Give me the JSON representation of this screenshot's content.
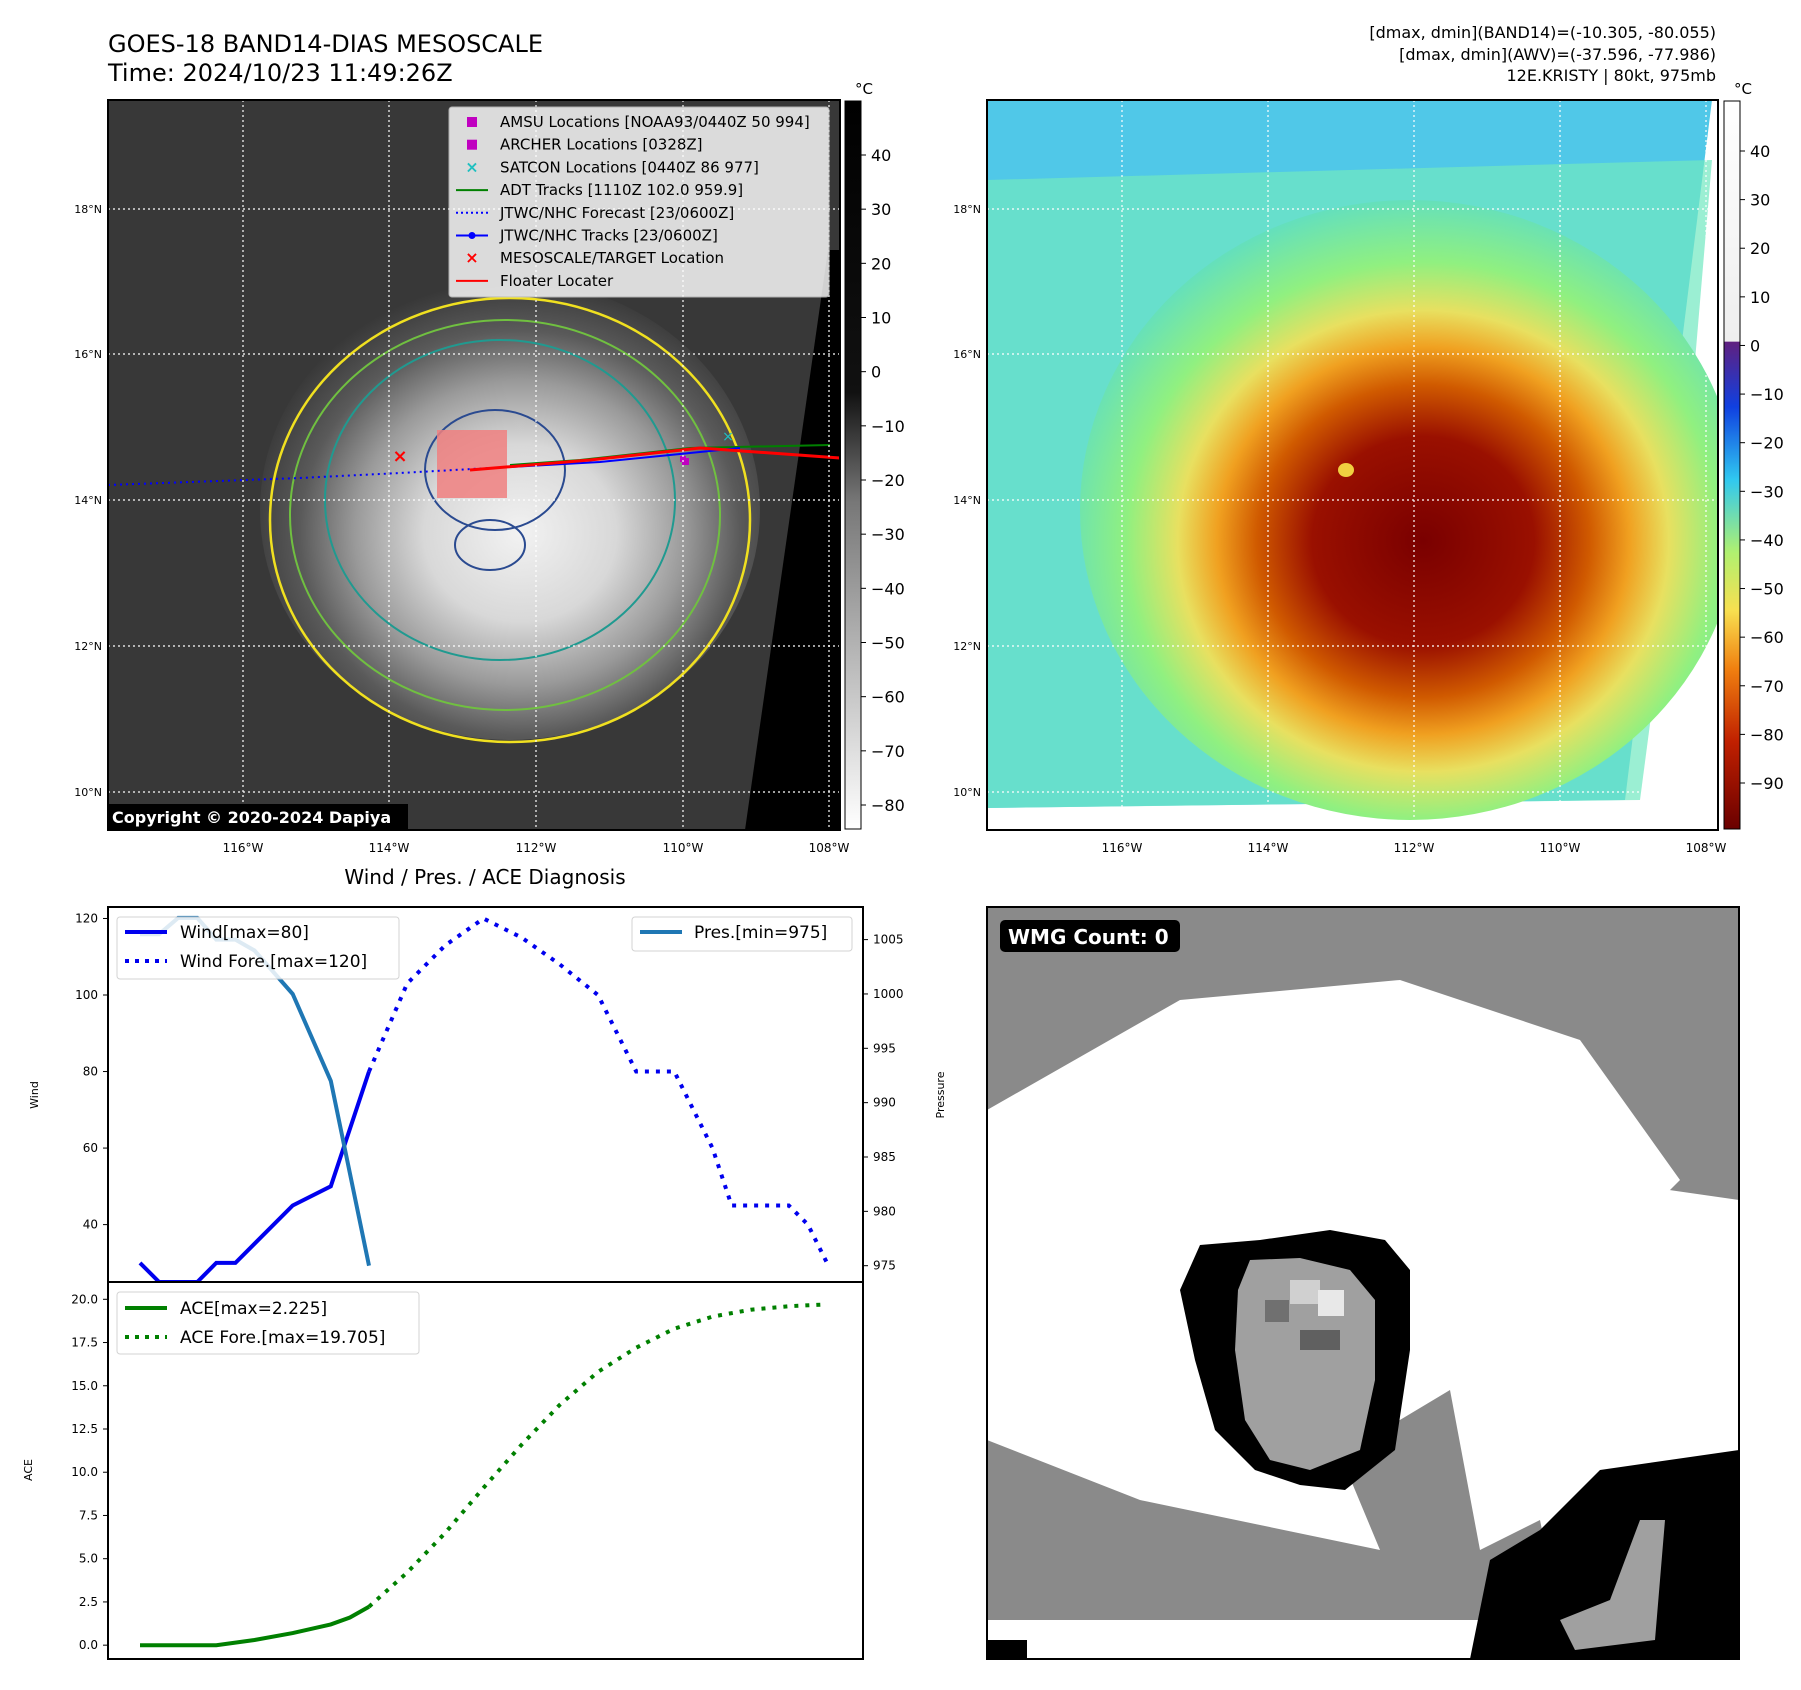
{
  "header": {
    "title_line1": "GOES-18 BAND14-DIAS MESOSCALE",
    "title_line2": "Time: 2024/10/23 11:49:26Z",
    "info_line1": "[dmax, dmin](BAND14)=(-10.305, -80.055)",
    "info_line2": "[dmax, dmin](AWV)=(-37.596, -77.986)",
    "info_line3": "12E.KRISTY | 80kt, 975mb"
  },
  "map": {
    "lat_labels": [
      "18°N",
      "16°N",
      "14°N",
      "12°N",
      "10°N"
    ],
    "lon_labels": [
      "116°W",
      "114°W",
      "112°W",
      "110°W",
      "108°W"
    ],
    "copyright": "Copyright © 2020-2024 Dapiya",
    "legend": [
      {
        "label": "AMSU Locations [NOAA93/0440Z 50 994]",
        "symbol": "square",
        "color": "#c000c0"
      },
      {
        "label": "ARCHER Locations [0328Z]",
        "symbol": "square",
        "color": "#c000c0"
      },
      {
        "label": "SATCON Locations [0440Z 86 977]",
        "symbol": "x",
        "color": "#20c0c0"
      },
      {
        "label": "ADT Tracks [1110Z 102.0 959.9]",
        "symbol": "line",
        "color": "#008000"
      },
      {
        "label": "JTWC/NHC Forecast [23/0600Z]",
        "symbol": "dotted",
        "color": "#0000ff"
      },
      {
        "label": "JTWC/NHC Tracks [23/0600Z]",
        "symbol": "line-dot",
        "color": "#0000ff"
      },
      {
        "label": "MESOSCALE/TARGET Location",
        "symbol": "x",
        "color": "#ff0000"
      },
      {
        "label": "Floater Locater",
        "symbol": "line",
        "color": "#ff0000"
      }
    ]
  },
  "colorbar_ir": {
    "unit": "°C",
    "ticks": [
      "40",
      "30",
      "20",
      "10",
      "0",
      "−10",
      "−20",
      "−30",
      "−40",
      "−50",
      "−60",
      "−70",
      "−80"
    ]
  },
  "colorbar_awv": {
    "unit": "°C",
    "ticks": [
      "40",
      "30",
      "20",
      "10",
      "0",
      "−10",
      "−20",
      "−30",
      "−40",
      "−50",
      "−60",
      "−70",
      "−80",
      "−90"
    ]
  },
  "diag_title": "Wind / Pres. / ACE Diagnosis",
  "wmg_label": "WMG Count: 0",
  "chart_data": [
    {
      "type": "line",
      "title": "Wind / Pres. / ACE Diagnosis",
      "ylabel": "Wind",
      "y2label": "Pressure",
      "ylim": [
        25,
        123
      ],
      "y2lim": [
        973.5,
        1008
      ],
      "yticks": [
        "40",
        "60",
        "80",
        "100",
        "120"
      ],
      "y2ticks": [
        "975",
        "980",
        "985",
        "990",
        "995",
        "1000",
        "1005"
      ],
      "series": [
        {
          "name": "Wind[max=80]",
          "axis": "left",
          "style": "solid",
          "color": "#0000ee",
          "x": [
            0,
            1,
            2,
            3,
            4,
            5,
            8,
            10,
            12
          ],
          "values": [
            30,
            25,
            25,
            25,
            30,
            30,
            45,
            50,
            80
          ]
        },
        {
          "name": "Wind Fore.[max=120]",
          "axis": "left",
          "style": "dotted",
          "color": "#0000ee",
          "x": [
            12,
            14,
            16,
            18,
            20,
            22,
            24,
            26,
            27,
            28,
            30,
            31,
            32,
            34,
            35,
            36
          ],
          "values": [
            80,
            103,
            113,
            120,
            115,
            108,
            100,
            80,
            80,
            80,
            60,
            45,
            45,
            45,
            40,
            30
          ]
        },
        {
          "name": "Pres.[min=975]",
          "axis": "right",
          "style": "solid",
          "color": "#1f77b4",
          "x": [
            0,
            1,
            2,
            3,
            4,
            5,
            6,
            8,
            10,
            12
          ],
          "values": [
            1005.5,
            1005.5,
            1007,
            1007,
            1005,
            1005,
            1004,
            1000,
            992,
            975
          ]
        }
      ]
    },
    {
      "type": "line",
      "ylabel": "ACE",
      "ylim": [
        -0.8,
        21
      ],
      "yticks": [
        "0.0",
        "2.5",
        "5.0",
        "7.5",
        "10.0",
        "12.5",
        "15.0",
        "17.5",
        "20.0"
      ],
      "series": [
        {
          "name": "ACE[max=2.225]",
          "style": "solid",
          "color": "#008000",
          "x": [
            0,
            2,
            4,
            6,
            8,
            10,
            11,
            12
          ],
          "values": [
            0.0,
            0.0,
            0.0,
            0.3,
            0.7,
            1.2,
            1.6,
            2.225
          ]
        },
        {
          "name": "ACE Fore.[max=19.705]",
          "style": "dotted",
          "color": "#008000",
          "x": [
            12,
            14,
            16,
            18,
            20,
            22,
            24,
            26,
            28,
            30,
            32,
            34,
            36
          ],
          "values": [
            2.225,
            4.2,
            6.5,
            9.1,
            11.6,
            13.9,
            15.8,
            17.2,
            18.3,
            19.0,
            19.4,
            19.6,
            19.705
          ]
        }
      ]
    }
  ]
}
